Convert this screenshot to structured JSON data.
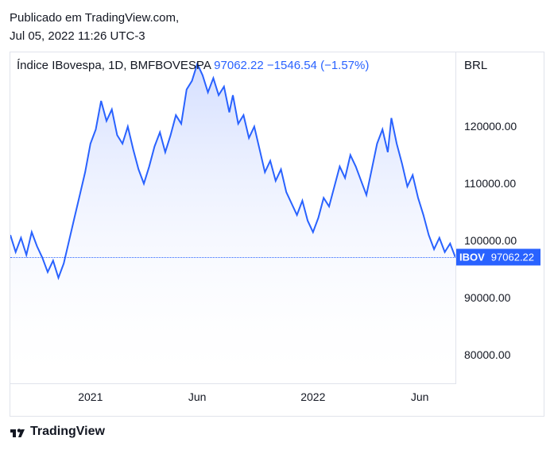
{
  "header": {
    "published_line": "Publicado em TradingView.com,",
    "timestamp_line": "Jul 05, 2022 11:26 UTC-3"
  },
  "legend": {
    "name": "Índice IBovespa, 1D, BMFBOVESPA",
    "last": "97062.22",
    "change_abs": "−1546.54",
    "change_pct": "(−1.57%)"
  },
  "chart": {
    "type": "area",
    "currency": "BRL",
    "line_color": "#2962ff",
    "line_width": 2,
    "fill_top": "#cdd9ff",
    "fill_bottom": "#ffffff",
    "background_color": "#ffffff",
    "border_color": "#e0e3eb",
    "ylim": [
      75000,
      133000
    ],
    "ytick_step": 10000,
    "yticks": [
      80000,
      90000,
      100000,
      110000,
      120000
    ],
    "ytick_labels": [
      "80000.00",
      "90000.00",
      "100000.00",
      "110000.00",
      "120000.00"
    ],
    "xlim": [
      0,
      500
    ],
    "xticks": [
      {
        "pos": 90,
        "label": "2021"
      },
      {
        "pos": 210,
        "label": "Jun"
      },
      {
        "pos": 340,
        "label": "2022"
      },
      {
        "pos": 460,
        "label": "Jun"
      }
    ],
    "price_line": {
      "value": 97062.22,
      "symbol": "IBOV",
      "display": "97062.22",
      "color": "#2962ff"
    },
    "series": [
      [
        0,
        101000
      ],
      [
        6,
        98000
      ],
      [
        12,
        100500
      ],
      [
        18,
        97500
      ],
      [
        24,
        101500
      ],
      [
        30,
        99000
      ],
      [
        36,
        97000
      ],
      [
        42,
        94500
      ],
      [
        48,
        96500
      ],
      [
        54,
        93500
      ],
      [
        60,
        96000
      ],
      [
        66,
        100000
      ],
      [
        72,
        104000
      ],
      [
        78,
        108000
      ],
      [
        84,
        112000
      ],
      [
        90,
        117000
      ],
      [
        96,
        119500
      ],
      [
        102,
        124500
      ],
      [
        108,
        121000
      ],
      [
        114,
        123000
      ],
      [
        120,
        118500
      ],
      [
        126,
        117000
      ],
      [
        132,
        120000
      ],
      [
        138,
        116000
      ],
      [
        144,
        112500
      ],
      [
        150,
        110000
      ],
      [
        156,
        113000
      ],
      [
        162,
        116500
      ],
      [
        168,
        119000
      ],
      [
        174,
        115500
      ],
      [
        180,
        118500
      ],
      [
        186,
        122000
      ],
      [
        192,
        120500
      ],
      [
        198,
        126500
      ],
      [
        204,
        128000
      ],
      [
        210,
        131000
      ],
      [
        216,
        129000
      ],
      [
        222,
        126000
      ],
      [
        228,
        128500
      ],
      [
        234,
        125500
      ],
      [
        240,
        127000
      ],
      [
        246,
        122500
      ],
      [
        250,
        125500
      ],
      [
        256,
        120500
      ],
      [
        262,
        122000
      ],
      [
        268,
        118000
      ],
      [
        274,
        120000
      ],
      [
        280,
        116000
      ],
      [
        286,
        112000
      ],
      [
        292,
        114000
      ],
      [
        298,
        110500
      ],
      [
        304,
        112500
      ],
      [
        310,
        108500
      ],
      [
        316,
        106500
      ],
      [
        322,
        104500
      ],
      [
        328,
        107000
      ],
      [
        334,
        103500
      ],
      [
        340,
        101500
      ],
      [
        346,
        104000
      ],
      [
        352,
        107500
      ],
      [
        358,
        106000
      ],
      [
        364,
        109500
      ],
      [
        370,
        113000
      ],
      [
        376,
        111000
      ],
      [
        382,
        115000
      ],
      [
        388,
        113000
      ],
      [
        394,
        110500
      ],
      [
        400,
        108000
      ],
      [
        406,
        112500
      ],
      [
        412,
        117000
      ],
      [
        418,
        119500
      ],
      [
        424,
        115500
      ],
      [
        428,
        121500
      ],
      [
        434,
        117000
      ],
      [
        440,
        113500
      ],
      [
        446,
        109500
      ],
      [
        452,
        111500
      ],
      [
        458,
        107500
      ],
      [
        464,
        104500
      ],
      [
        470,
        101000
      ],
      [
        476,
        98500
      ],
      [
        482,
        100500
      ],
      [
        488,
        98000
      ],
      [
        494,
        99500
      ],
      [
        500,
        97062
      ]
    ]
  },
  "footer": {
    "brand": "TradingView"
  }
}
